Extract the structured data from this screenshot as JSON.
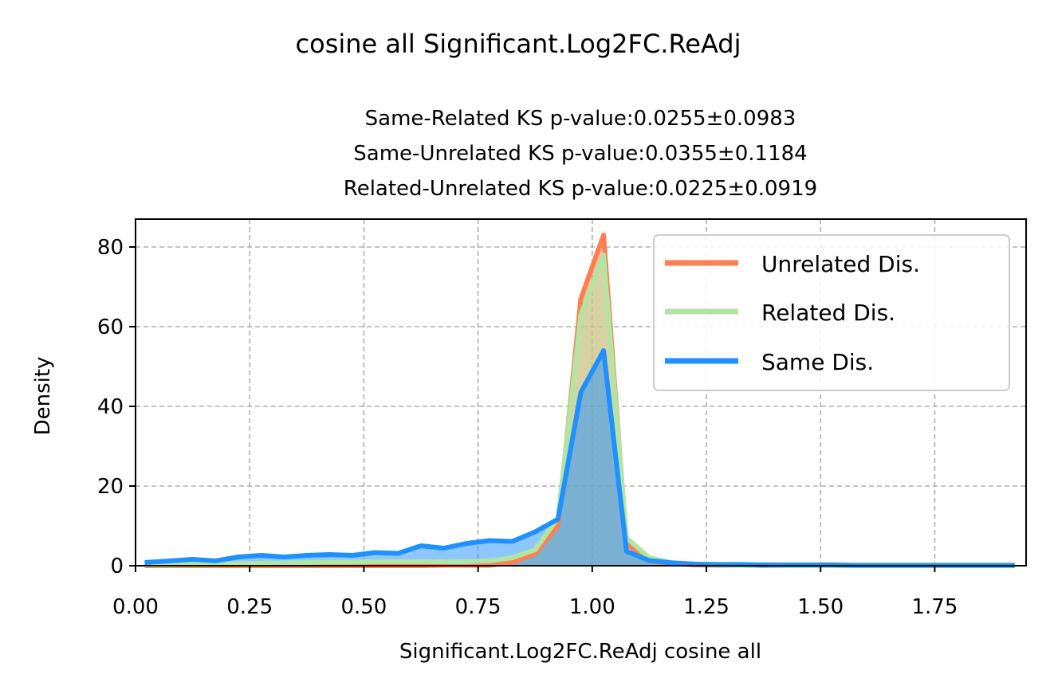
{
  "chart_data": {
    "type": "area",
    "suptitle": "cosine all Significant.Log2FC.ReAdj",
    "title_lines": [
      "Same-Related KS p-value:0.0255±0.0983",
      "Same-Unrelated KS p-value:0.0355±0.1184",
      "Related-Unrelated KS p-value:0.0225±0.0919"
    ],
    "xlabel": "Significant.Log2FC.ReAdj cosine all",
    "ylabel": "Density",
    "xlim": [
      0.0,
      1.95
    ],
    "ylim": [
      0,
      87
    ],
    "xticks": [
      0.0,
      0.25,
      0.5,
      0.75,
      1.0,
      1.25,
      1.5,
      1.75
    ],
    "xtick_labels": [
      "0.00",
      "0.25",
      "0.50",
      "0.75",
      "1.00",
      "1.25",
      "1.50",
      "1.75"
    ],
    "yticks": [
      0,
      20,
      40,
      60,
      80
    ],
    "ytick_labels": [
      "0",
      "20",
      "40",
      "60",
      "80"
    ],
    "grid": true,
    "legend_position": "upper-right",
    "x": [
      0.02,
      0.075,
      0.125,
      0.175,
      0.225,
      0.275,
      0.325,
      0.375,
      0.425,
      0.475,
      0.525,
      0.575,
      0.625,
      0.675,
      0.725,
      0.775,
      0.825,
      0.875,
      0.925,
      0.975,
      1.025,
      1.075,
      1.125,
      1.175,
      1.225,
      1.275,
      1.325,
      1.375,
      1.425,
      1.475,
      1.525,
      1.575,
      1.625,
      1.675,
      1.725,
      1.775,
      1.825,
      1.875,
      1.925
    ],
    "series": [
      {
        "name": "Unrelated Dis.",
        "color": "#ff7f50",
        "values": [
          0.0,
          0.0,
          0.0,
          0.0,
          0.0,
          0.0,
          0.0,
          0.0,
          0.0,
          0.0,
          0.0,
          0.0,
          0.0,
          0.1,
          0.1,
          0.1,
          0.8,
          3.0,
          10.0,
          67.0,
          83.0,
          5.5,
          1.2,
          0.5,
          0.2,
          0.1,
          0.1,
          0.0,
          0.0,
          0.0,
          0.0,
          0.0,
          0.0,
          0.0,
          0.0,
          0.0,
          0.0,
          0.0,
          0.0
        ]
      },
      {
        "name": "Related Dis.",
        "color": "#b0e5a2",
        "values": [
          0.2,
          0.2,
          0.3,
          0.3,
          0.5,
          0.6,
          0.7,
          0.8,
          0.9,
          0.9,
          1.0,
          1.0,
          1.0,
          1.0,
          1.0,
          1.2,
          2.0,
          4.0,
          12.0,
          63.0,
          78.0,
          7.0,
          2.0,
          0.8,
          0.4,
          0.2,
          0.1,
          0.1,
          0.0,
          0.0,
          0.0,
          0.0,
          0.0,
          0.0,
          0.0,
          0.0,
          0.0,
          0.0,
          0.0
        ]
      },
      {
        "name": "Same Dis.",
        "color": "#1e90ff",
        "values": [
          0.8,
          1.2,
          1.6,
          1.2,
          2.2,
          2.6,
          2.2,
          2.6,
          2.8,
          2.6,
          3.3,
          3.1,
          5.0,
          4.4,
          5.6,
          6.3,
          6.1,
          8.5,
          11.7,
          43.5,
          54.0,
          3.6,
          1.3,
          0.7,
          0.4,
          0.3,
          0.3,
          0.2,
          0.2,
          0.2,
          0.2,
          0.1,
          0.1,
          0.1,
          0.1,
          0.1,
          0.1,
          0.1,
          0.1
        ]
      }
    ]
  }
}
